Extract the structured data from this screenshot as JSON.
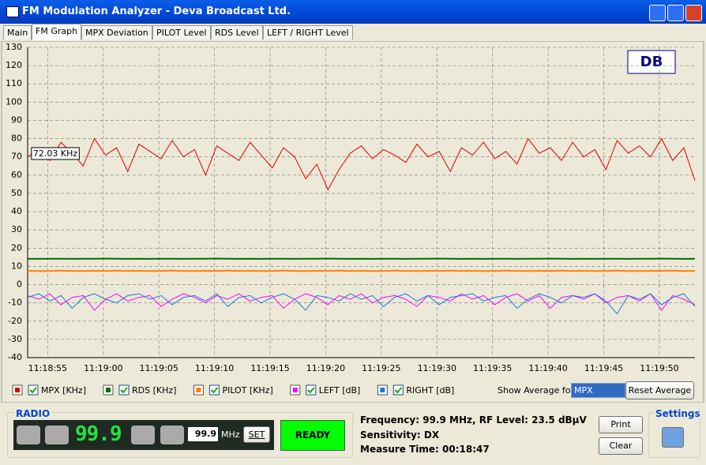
{
  "window": {
    "title": "FM Modulation Analyzer - Deva Broadcast Ltd."
  },
  "tabs": [
    "Main",
    "FM Graph",
    "MPX Deviation",
    "PILOT Level",
    "RDS Level",
    "LEFT / RIGHT Level"
  ],
  "chart_data": {
    "type": "line",
    "annotation": "72.03 KHz",
    "grid": true,
    "x": [
      40733.2,
      40734.2,
      40735.2,
      40736.2,
      40737.2,
      40738.2,
      40739.2,
      40740.2,
      40741.2,
      40742.2,
      40743.2,
      40744.2,
      40745.2,
      40746.2,
      40747.2,
      40748.2,
      40749.2,
      40750.2,
      40751.2,
      40752.2,
      40753.2,
      40754.2,
      40755.2,
      40756.2,
      40757.2,
      40758.2,
      40759.2,
      40760.2,
      40761.2,
      40762.2,
      40763.2,
      40764.2,
      40765.2,
      40766.2,
      40767.2,
      40768.2,
      40769.2,
      40770.2,
      40771.2,
      40772.2,
      40773.2,
      40774.2,
      40775.2,
      40776.2,
      40777.2,
      40778.2,
      40779.2,
      40780.2,
      40781.2,
      40782.2,
      40783.2,
      40784.2,
      40785.2,
      40786.2,
      40787.2,
      40788.2,
      40789.2,
      40790.2,
      40791.2,
      40792.2,
      40793.2
    ],
    "xlim": [
      40733.2,
      40793.2
    ],
    "xticks": [
      {
        "value": 40735,
        "label": "11:18:55"
      },
      {
        "value": 40740,
        "label": "11:19:00"
      },
      {
        "value": 40745,
        "label": "11:19:05"
      },
      {
        "value": 40750,
        "label": "11:19:10"
      },
      {
        "value": 40755,
        "label": "11:19:15"
      },
      {
        "value": 40760,
        "label": "11:19:20"
      },
      {
        "value": 40765,
        "label": "11:19:25"
      },
      {
        "value": 40770,
        "label": "11:19:30"
      },
      {
        "value": 40775,
        "label": "11:19:35"
      },
      {
        "value": 40780,
        "label": "11:19:40"
      },
      {
        "value": 40785,
        "label": "11:19:45"
      },
      {
        "value": 40790,
        "label": "11:19:50"
      }
    ],
    "ylim": [
      -40,
      130
    ],
    "yticks": [
      -40,
      -30,
      -20,
      -10,
      0,
      10,
      20,
      30,
      40,
      50,
      60,
      70,
      80,
      90,
      100,
      110,
      120,
      130
    ],
    "series": [
      {
        "name": "MPX [KHz]",
        "color": "#e00000",
        "values": [
          70,
          74,
          68,
          78,
          72,
          65,
          80,
          71,
          75,
          62,
          77,
          73,
          69,
          79,
          70,
          74,
          60,
          76,
          72,
          68,
          78,
          71,
          64,
          75,
          70,
          58,
          66,
          52,
          63,
          72,
          76,
          69,
          74,
          71,
          67,
          77,
          70,
          73,
          62,
          75,
          71,
          78,
          69,
          73,
          66,
          80,
          72,
          75,
          68,
          78,
          70,
          74,
          63,
          79,
          72,
          76,
          70,
          80,
          68,
          75,
          57
        ]
      },
      {
        "name": "RDS [KHz]",
        "color": "#007000",
        "values": [
          14.2,
          14.1,
          14.2,
          14.2,
          14.1,
          14.2,
          14.2,
          14.3,
          14.2,
          14.1,
          14.2,
          14.1,
          14.2,
          14.2,
          14.1,
          14.2,
          14.2,
          14.3,
          14.2,
          14.1,
          14.2,
          14.1,
          14.2,
          14.2,
          14.1,
          14.2,
          14.2,
          14.3,
          14.2,
          14.1,
          14.2,
          14.1,
          14.2,
          14.2,
          14.1,
          14.2,
          14.2,
          14.3,
          14.2,
          14.1,
          14.2,
          14.1,
          14.2,
          14.2,
          14.1,
          14.2,
          14.2,
          14.3,
          14.2,
          14.1,
          14.2,
          14.1,
          14.2,
          14.2,
          14.1,
          14.2,
          14.2,
          14.3,
          14.2,
          14.1,
          14.2
        ]
      },
      {
        "name": "PILOT [KHz]",
        "color": "#ff8000",
        "values": [
          7.6,
          7.4,
          7.5,
          7.7,
          7.5,
          7.4,
          7.6,
          7.5,
          7.7,
          7.5,
          7.6,
          7.4,
          7.5,
          7.7,
          7.5,
          7.4,
          7.6,
          7.5,
          7.7,
          7.5,
          7.6,
          7.4,
          7.5,
          7.7,
          7.5,
          7.4,
          7.6,
          7.5,
          7.7,
          7.5,
          7.6,
          7.4,
          7.5,
          7.7,
          7.5,
          7.4,
          7.6,
          7.5,
          7.7,
          7.5,
          7.6,
          7.4,
          7.5,
          7.7,
          7.5,
          7.4,
          7.6,
          7.5,
          7.7,
          7.5,
          7.6,
          7.4,
          7.5,
          7.7,
          7.5,
          7.4,
          7.6,
          7.5,
          7.7,
          7.5,
          7.5
        ]
      },
      {
        "name": "LEFT [dB]",
        "color": "#ff00ff",
        "values": [
          -6,
          -8,
          -5,
          -11,
          -7,
          -6,
          -14,
          -8,
          -5,
          -9,
          -7,
          -6,
          -12,
          -8,
          -5,
          -7,
          -10,
          -6,
          -8,
          -5,
          -9,
          -7,
          -6,
          -13,
          -8,
          -5,
          -7,
          -11,
          -6,
          -8,
          -5,
          -10,
          -7,
          -6,
          -8,
          -12,
          -6,
          -7,
          -9,
          -5,
          -8,
          -6,
          -11,
          -7,
          -5,
          -9,
          -6,
          -13,
          -7,
          -6,
          -8,
          -5,
          -10,
          -7,
          -6,
          -9,
          -5,
          -14,
          -6,
          -8,
          -11
        ]
      },
      {
        "name": "RIGHT [dB]",
        "color": "#1a7ae0",
        "values": [
          -7,
          -5,
          -9,
          -6,
          -13,
          -7,
          -5,
          -8,
          -10,
          -6,
          -5,
          -8,
          -6,
          -11,
          -7,
          -6,
          -9,
          -5,
          -12,
          -7,
          -6,
          -10,
          -7,
          -5,
          -8,
          -14,
          -6,
          -7,
          -9,
          -5,
          -8,
          -6,
          -12,
          -7,
          -5,
          -9,
          -6,
          -11,
          -7,
          -6,
          -5,
          -9,
          -7,
          -6,
          -13,
          -8,
          -5,
          -7,
          -10,
          -6,
          -7,
          -5,
          -9,
          -16,
          -6,
          -8,
          -5,
          -11,
          -7,
          -5,
          -12
        ]
      }
    ]
  },
  "controls": {
    "average_label": "Show Average for:",
    "average_value": "MPX",
    "reset": "Reset Average"
  },
  "radio": {
    "title": "RADIO",
    "display": "99.9",
    "input": "99.9",
    "unit": "MHz",
    "set": "SET",
    "status": "READY"
  },
  "info": {
    "line1": "Frequency: 99.9 MHz, RF Level: 23.5 dBµV",
    "line2": "Sensitivity: DX",
    "line3": "Measure Time: 00:18:47"
  },
  "buttons": {
    "print": "Print",
    "clear": "Clear",
    "settings": "Settings"
  }
}
